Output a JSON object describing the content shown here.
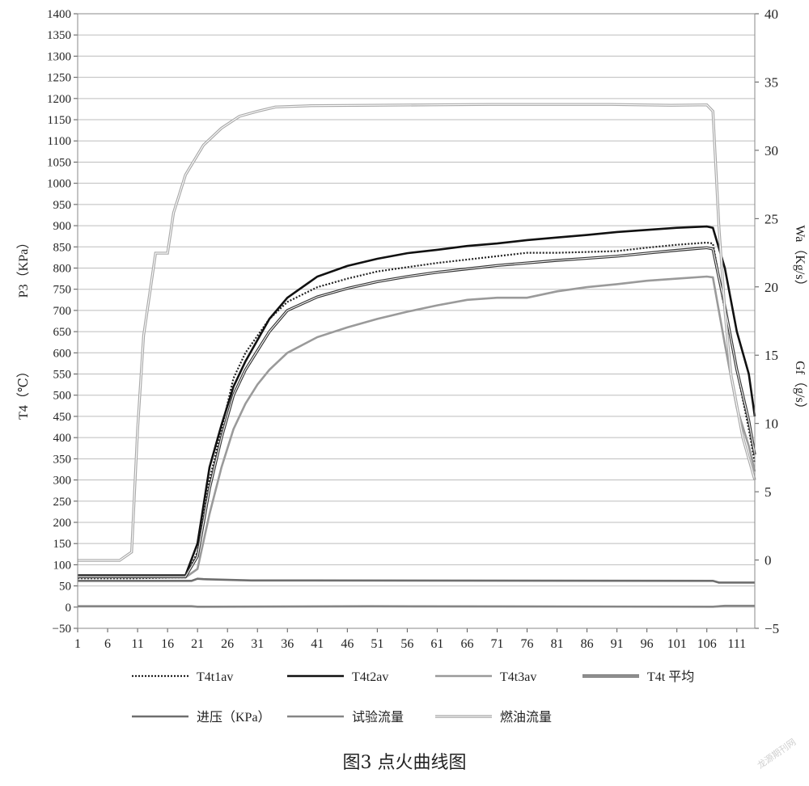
{
  "chart_data": {
    "type": "line",
    "caption": "图3 点火曲线图",
    "left_axis_labels": [
      "P3（KPa）",
      "T4（℃）"
    ],
    "right_axis_labels": [
      "Wa（Kg/s）",
      "Gf（g/s）"
    ],
    "x_ticks": [
      "1",
      "6",
      "11",
      "16",
      "21",
      "26",
      "31",
      "36",
      "41",
      "46",
      "51",
      "56",
      "61",
      "66",
      "71",
      "76",
      "81",
      "86",
      "91",
      "96",
      "101",
      "106",
      "111"
    ],
    "xlim": [
      1,
      114
    ],
    "ylim_left": [
      -50,
      1400
    ],
    "y_ticks_left": [
      "1400",
      "1350",
      "1300",
      "1250",
      "1200",
      "1150",
      "1100",
      "1050",
      "1000",
      "950",
      "900",
      "850",
      "800",
      "750",
      "700",
      "650",
      "600",
      "550",
      "500",
      "450",
      "400",
      "350",
      "300",
      "250",
      "200",
      "150",
      "100",
      "50",
      "0",
      "−50"
    ],
    "ylim_right": [
      -5,
      40
    ],
    "y_ticks_right": [
      "40",
      "35",
      "30",
      "25",
      "20",
      "15",
      "10",
      "5",
      "0",
      "−5"
    ],
    "grid": true,
    "legend_position": "bottom",
    "series": [
      {
        "name": "T4t1av",
        "color": "#222222",
        "style": "dotted",
        "points": [
          [
            1,
            68
          ],
          [
            10,
            68
          ],
          [
            19,
            70
          ],
          [
            21,
            130
          ],
          [
            23,
            300
          ],
          [
            25,
            420
          ],
          [
            27,
            540
          ],
          [
            29,
            600
          ],
          [
            31,
            640
          ],
          [
            33,
            680
          ],
          [
            36,
            720
          ],
          [
            41,
            755
          ],
          [
            46,
            775
          ],
          [
            51,
            792
          ],
          [
            56,
            802
          ],
          [
            61,
            812
          ],
          [
            66,
            820
          ],
          [
            71,
            828
          ],
          [
            76,
            836
          ],
          [
            81,
            836
          ],
          [
            86,
            838
          ],
          [
            91,
            840
          ],
          [
            96,
            848
          ],
          [
            101,
            855
          ],
          [
            106,
            860
          ],
          [
            107,
            858
          ],
          [
            109,
            700
          ],
          [
            111,
            560
          ],
          [
            113,
            420
          ],
          [
            114,
            340
          ]
        ]
      },
      {
        "name": "T4t2av",
        "color": "#111111",
        "style": "solid-thick",
        "points": [
          [
            1,
            75
          ],
          [
            10,
            75
          ],
          [
            19,
            75
          ],
          [
            21,
            150
          ],
          [
            23,
            330
          ],
          [
            25,
            430
          ],
          [
            27,
            520
          ],
          [
            29,
            580
          ],
          [
            31,
            630
          ],
          [
            33,
            680
          ],
          [
            36,
            730
          ],
          [
            41,
            780
          ],
          [
            46,
            805
          ],
          [
            51,
            822
          ],
          [
            56,
            835
          ],
          [
            61,
            843
          ],
          [
            66,
            852
          ],
          [
            71,
            858
          ],
          [
            76,
            866
          ],
          [
            81,
            872
          ],
          [
            86,
            878
          ],
          [
            91,
            885
          ],
          [
            96,
            890
          ],
          [
            101,
            895
          ],
          [
            106,
            898
          ],
          [
            107,
            895
          ],
          [
            109,
            800
          ],
          [
            111,
            650
          ],
          [
            113,
            550
          ],
          [
            114,
            450
          ]
        ]
      },
      {
        "name": "T4t3av",
        "color": "#9a9a9a",
        "style": "solid-thick",
        "points": [
          [
            1,
            70
          ],
          [
            10,
            70
          ],
          [
            19,
            70
          ],
          [
            21,
            90
          ],
          [
            23,
            220
          ],
          [
            25,
            330
          ],
          [
            27,
            420
          ],
          [
            29,
            480
          ],
          [
            31,
            525
          ],
          [
            33,
            560
          ],
          [
            36,
            600
          ],
          [
            41,
            637
          ],
          [
            46,
            660
          ],
          [
            51,
            680
          ],
          [
            56,
            697
          ],
          [
            61,
            712
          ],
          [
            66,
            725
          ],
          [
            71,
            730
          ],
          [
            76,
            730
          ],
          [
            81,
            745
          ],
          [
            86,
            755
          ],
          [
            91,
            762
          ],
          [
            96,
            770
          ],
          [
            101,
            775
          ],
          [
            106,
            780
          ],
          [
            107,
            778
          ],
          [
            109,
            620
          ],
          [
            111,
            470
          ],
          [
            113,
            380
          ],
          [
            114,
            320
          ]
        ]
      },
      {
        "name": "T4t 平均",
        "color": "#333333",
        "style": "double",
        "points": [
          [
            1,
            72
          ],
          [
            10,
            72
          ],
          [
            19,
            72
          ],
          [
            21,
            120
          ],
          [
            23,
            280
          ],
          [
            25,
            400
          ],
          [
            27,
            500
          ],
          [
            29,
            560
          ],
          [
            31,
            605
          ],
          [
            33,
            650
          ],
          [
            36,
            700
          ],
          [
            41,
            732
          ],
          [
            46,
            752
          ],
          [
            51,
            768
          ],
          [
            56,
            780
          ],
          [
            61,
            790
          ],
          [
            66,
            798
          ],
          [
            71,
            806
          ],
          [
            76,
            812
          ],
          [
            81,
            818
          ],
          [
            86,
            823
          ],
          [
            91,
            828
          ],
          [
            96,
            835
          ],
          [
            101,
            842
          ],
          [
            106,
            848
          ],
          [
            107,
            845
          ],
          [
            109,
            710
          ],
          [
            111,
            560
          ],
          [
            113,
            440
          ],
          [
            114,
            360
          ]
        ]
      },
      {
        "name": "进压（KPa）",
        "color": "#6e6e6e",
        "style": "solid-thick",
        "points": [
          [
            1,
            62
          ],
          [
            20,
            62
          ],
          [
            21,
            67
          ],
          [
            22,
            66
          ],
          [
            30,
            63
          ],
          [
            107,
            62
          ],
          [
            108,
            58
          ],
          [
            114,
            58
          ]
        ]
      },
      {
        "name": "试验流量",
        "color": "#858585",
        "style": "solid-thick",
        "points": [
          [
            1,
            2
          ],
          [
            20,
            2
          ],
          [
            21,
            1
          ],
          [
            50,
            2
          ],
          [
            107,
            1
          ],
          [
            109,
            3
          ],
          [
            114,
            3
          ]
        ]
      },
      {
        "name": "燃油流量",
        "color": "#a8a8a8",
        "style": "double",
        "points": [
          [
            1,
            110
          ],
          [
            8,
            110
          ],
          [
            10,
            130
          ],
          [
            11,
            420
          ],
          [
            12,
            640
          ],
          [
            14,
            835
          ],
          [
            16,
            835
          ],
          [
            17,
            930
          ],
          [
            19,
            1020
          ],
          [
            22,
            1090
          ],
          [
            25,
            1130
          ],
          [
            28,
            1158
          ],
          [
            31,
            1170
          ],
          [
            34,
            1180
          ],
          [
            40,
            1183
          ],
          [
            50,
            1184
          ],
          [
            60,
            1185
          ],
          [
            70,
            1186
          ],
          [
            80,
            1186
          ],
          [
            90,
            1186
          ],
          [
            100,
            1184
          ],
          [
            106,
            1185
          ],
          [
            107,
            1170
          ],
          [
            108,
            900
          ],
          [
            109,
            700
          ],
          [
            110,
            550
          ],
          [
            112,
            400
          ],
          [
            114,
            300
          ]
        ]
      }
    ]
  },
  "watermark": "龙源期刊网"
}
